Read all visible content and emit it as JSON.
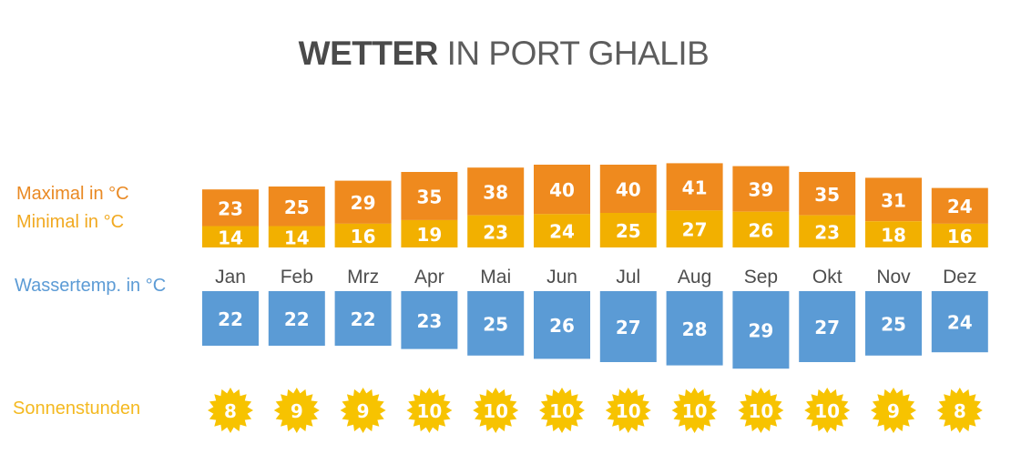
{
  "title": {
    "bold": "WETTER",
    "rest": "IN PORT GHALIB"
  },
  "legend": {
    "max": "Maximal in °C",
    "min": "Minimal in °C",
    "water": "Wassertemp. in °C",
    "sun": "Sonnenstunden"
  },
  "colors": {
    "max": "#ef8a1e",
    "min": "#f2b000",
    "water": "#5b9bd5",
    "sun": "#f7c300",
    "title": "#4a4a4a",
    "month_text": "#4d4d4d"
  },
  "chart_data": {
    "type": "bar",
    "title": "WETTER IN PORT GHALIB",
    "categories": [
      "Jan",
      "Feb",
      "Mrz",
      "Apr",
      "Mai",
      "Jun",
      "Jul",
      "Aug",
      "Sep",
      "Okt",
      "Nov",
      "Dez"
    ],
    "series": [
      {
        "name": "Maximal in °C",
        "values": [
          23,
          25,
          29,
          35,
          38,
          40,
          40,
          41,
          39,
          35,
          31,
          24
        ]
      },
      {
        "name": "Minimal in °C",
        "values": [
          14,
          14,
          16,
          19,
          23,
          24,
          25,
          27,
          26,
          23,
          18,
          16
        ]
      },
      {
        "name": "Wassertemp. in °C",
        "values": [
          22,
          22,
          22,
          23,
          25,
          26,
          27,
          28,
          29,
          27,
          25,
          24
        ]
      },
      {
        "name": "Sonnenstunden",
        "values": [
          8,
          9,
          9,
          10,
          10,
          10,
          10,
          10,
          10,
          10,
          9,
          8
        ]
      }
    ],
    "grid": false,
    "legend_position": "left"
  }
}
